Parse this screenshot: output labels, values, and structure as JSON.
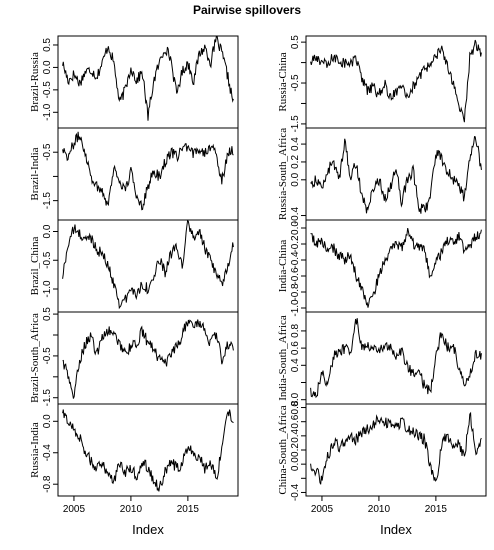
{
  "title": "Pairwise spillovers",
  "xlabel": "Index",
  "xticks": [
    2005,
    2010,
    2015
  ],
  "chart_data": [
    {
      "type": "line",
      "panel": "Brazil-Russia",
      "ylabel": "Brazil-Russia",
      "ylim": [
        -1.35,
        0.7
      ],
      "yticks": [
        -1.0,
        -0.5,
        0.0,
        0.5
      ],
      "ytick_labels": [
        "-1.0",
        "-0.5",
        "0.0",
        "0.5"
      ],
      "x": [
        2004.0,
        2004.5,
        2005.0,
        2005.5,
        2006.0,
        2006.5,
        2007.0,
        2007.5,
        2008.0,
        2008.5,
        2009.0,
        2009.5,
        2010.0,
        2010.5,
        2011.0,
        2011.5,
        2012.0,
        2012.5,
        2013.0,
        2013.5,
        2014.0,
        2014.5,
        2015.0,
        2015.5,
        2016.0,
        2016.5,
        2017.0,
        2017.5,
        2018.0,
        2018.5,
        2019.0
      ],
      "y": [
        0.1,
        -0.3,
        -0.15,
        -0.35,
        -0.1,
        -0.05,
        -0.2,
        0.1,
        0.5,
        0.1,
        -0.8,
        -0.5,
        0.0,
        -0.3,
        -0.1,
        -1.1,
        -0.3,
        0.1,
        0.45,
        0.2,
        -0.6,
        -0.1,
        0.1,
        -0.3,
        0.3,
        0.45,
        0.1,
        0.65,
        0.3,
        -0.2,
        -0.8
      ]
    },
    {
      "type": "line",
      "panel": "Brazil-India",
      "ylabel": "Brazil-India",
      "ylim": [
        -1.9,
        0.0
      ],
      "yticks": [
        -1.5,
        -1.0,
        -0.5
      ],
      "ytick_labels": [
        "-1.5",
        "",
        "-0.5"
      ],
      "x": [
        2004.0,
        2004.5,
        2005.0,
        2005.5,
        2006.0,
        2006.5,
        2007.0,
        2007.5,
        2008.0,
        2008.5,
        2009.0,
        2009.5,
        2010.0,
        2010.5,
        2011.0,
        2011.5,
        2012.0,
        2012.5,
        2013.0,
        2013.5,
        2014.0,
        2014.5,
        2015.0,
        2015.5,
        2016.0,
        2016.5,
        2017.0,
        2017.5,
        2018.0,
        2018.5,
        2019.0
      ],
      "y": [
        -0.4,
        -0.6,
        -0.3,
        -0.15,
        -0.5,
        -1.0,
        -1.2,
        -1.3,
        -1.6,
        -0.8,
        -1.1,
        -1.3,
        -0.9,
        -1.4,
        -1.6,
        -1.2,
        -0.9,
        -1.0,
        -0.7,
        -0.5,
        -0.6,
        -0.4,
        -0.45,
        -0.55,
        -0.4,
        -0.5,
        -0.35,
        -0.6,
        -1.1,
        -0.5,
        -0.45
      ]
    },
    {
      "type": "line",
      "panel": "Brazil_China",
      "ylabel": "Brazil_China",
      "ylim": [
        -1.4,
        0.2
      ],
      "yticks": [
        -1.0,
        -0.5,
        0.0
      ],
      "ytick_labels": [
        "-1.0",
        "-0.5",
        "0.0"
      ],
      "x": [
        2004.0,
        2004.5,
        2005.0,
        2005.5,
        2006.0,
        2006.5,
        2007.0,
        2007.5,
        2008.0,
        2008.5,
        2009.0,
        2009.5,
        2010.0,
        2010.5,
        2011.0,
        2011.5,
        2012.0,
        2012.5,
        2013.0,
        2013.5,
        2014.0,
        2014.5,
        2015.0,
        2015.5,
        2016.0,
        2016.5,
        2017.0,
        2017.5,
        2018.0,
        2018.5,
        2019.0
      ],
      "y": [
        -0.8,
        -0.2,
        0.05,
        -0.05,
        -0.15,
        -0.1,
        -0.3,
        -0.4,
        -0.6,
        -0.9,
        -1.25,
        -1.2,
        -1.0,
        -1.1,
        -0.9,
        -1.0,
        -0.8,
        -0.5,
        -0.7,
        -0.4,
        -0.3,
        -0.6,
        0.15,
        -0.1,
        0.0,
        -0.3,
        -0.5,
        -0.8,
        -0.9,
        -0.6,
        -0.2
      ]
    },
    {
      "type": "line",
      "panel": "Brazil-South_Africa",
      "ylabel": "Brazil-South_Africa",
      "ylim": [
        -1.65,
        0.55
      ],
      "yticks": [
        -1.5,
        -1.0,
        -0.5,
        0.0,
        0.5
      ],
      "ytick_labels": [
        "-1.5",
        "",
        "-0.5",
        "",
        "0.5"
      ],
      "x": [
        2004.0,
        2004.5,
        2005.0,
        2005.5,
        2006.0,
        2006.5,
        2007.0,
        2007.5,
        2008.0,
        2008.5,
        2009.0,
        2009.5,
        2010.0,
        2010.5,
        2011.0,
        2011.5,
        2012.0,
        2012.5,
        2013.0,
        2013.5,
        2014.0,
        2014.5,
        2015.0,
        2015.5,
        2016.0,
        2016.5,
        2017.0,
        2017.5,
        2018.0,
        2018.5,
        2019.0
      ],
      "y": [
        -0.6,
        -1.0,
        -1.5,
        -0.6,
        -0.2,
        0.0,
        -0.5,
        0.0,
        0.1,
        0.0,
        -0.2,
        -0.4,
        -0.3,
        -0.2,
        0.1,
        -0.2,
        -0.3,
        -0.6,
        -0.7,
        -0.5,
        -0.3,
        0.0,
        0.35,
        0.2,
        0.3,
        0.1,
        -0.2,
        0.0,
        -0.6,
        -0.2,
        -0.3
      ]
    },
    {
      "type": "line",
      "panel": "Russia-India",
      "ylabel": "Russia-India",
      "ylim": [
        -0.95,
        0.22
      ],
      "yticks": [
        -0.8,
        -0.4,
        0.0
      ],
      "ytick_labels": [
        "-0.8",
        "-0.4",
        "0.0"
      ],
      "x": [
        2004.0,
        2004.5,
        2005.0,
        2005.5,
        2006.0,
        2006.5,
        2007.0,
        2007.5,
        2008.0,
        2008.5,
        2009.0,
        2009.5,
        2010.0,
        2010.5,
        2011.0,
        2011.5,
        2012.0,
        2012.5,
        2013.0,
        2013.5,
        2014.0,
        2014.5,
        2015.0,
        2015.5,
        2016.0,
        2016.5,
        2017.0,
        2017.5,
        2018.0,
        2018.5,
        2019.0
      ],
      "y": [
        0.1,
        0.0,
        -0.1,
        -0.2,
        -0.4,
        -0.5,
        -0.6,
        -0.55,
        -0.65,
        -0.75,
        -0.55,
        -0.65,
        -0.6,
        -0.7,
        -0.5,
        -0.6,
        -0.75,
        -0.85,
        -0.65,
        -0.5,
        -0.6,
        -0.55,
        -0.3,
        -0.4,
        -0.45,
        -0.6,
        -0.5,
        -0.75,
        -0.3,
        0.15,
        0.0
      ]
    },
    {
      "type": "line",
      "panel": "Russia-China",
      "ylabel": "Russia-China",
      "ylim": [
        -1.6,
        0.65
      ],
      "yticks": [
        -1.5,
        -1.0,
        -0.5,
        0.0,
        0.5
      ],
      "ytick_labels": [
        "-1.5",
        "",
        "-0.5",
        "",
        "0.5"
      ],
      "x": [
        2004.0,
        2004.5,
        2005.0,
        2005.5,
        2006.0,
        2006.5,
        2007.0,
        2007.5,
        2008.0,
        2008.5,
        2009.0,
        2009.5,
        2010.0,
        2010.5,
        2011.0,
        2011.5,
        2012.0,
        2012.5,
        2013.0,
        2013.5,
        2014.0,
        2014.5,
        2015.0,
        2015.5,
        2016.0,
        2016.5,
        2017.0,
        2017.5,
        2018.0,
        2018.5,
        2019.0
      ],
      "y": [
        0.0,
        0.1,
        0.05,
        -0.1,
        0.15,
        0.05,
        0.0,
        -0.05,
        0.1,
        -0.4,
        -0.7,
        -0.6,
        -0.8,
        -0.5,
        -0.9,
        -0.7,
        -0.5,
        -0.8,
        -0.6,
        -0.4,
        -0.2,
        0.0,
        0.2,
        0.3,
        -0.1,
        -0.5,
        -1.0,
        -1.5,
        0.2,
        0.45,
        0.25
      ]
    },
    {
      "type": "line",
      "panel": "Russia-South_Africa",
      "ylabel": "Russia-South_Africa",
      "ylim": [
        -0.45,
        0.58
      ],
      "yticks": [
        -0.4,
        0.0,
        0.2,
        0.4
      ],
      "ytick_labels": [
        "-0.4",
        "0.0",
        "0.2",
        "0.4"
      ],
      "x": [
        2004.0,
        2004.5,
        2005.0,
        2005.5,
        2006.0,
        2006.5,
        2007.0,
        2007.5,
        2008.0,
        2008.5,
        2009.0,
        2009.5,
        2010.0,
        2010.5,
        2011.0,
        2011.5,
        2012.0,
        2012.5,
        2013.0,
        2013.5,
        2014.0,
        2014.5,
        2015.0,
        2015.5,
        2016.0,
        2016.5,
        2017.0,
        2017.5,
        2018.0,
        2018.5,
        2019.0
      ],
      "y": [
        -0.05,
        0.0,
        -0.1,
        0.1,
        0.2,
        0.0,
        0.45,
        0.0,
        0.2,
        -0.2,
        -0.35,
        -0.1,
        0.0,
        -0.2,
        -0.1,
        0.15,
        -0.25,
        0.0,
        0.1,
        -0.3,
        -0.35,
        -0.2,
        0.3,
        0.25,
        0.1,
        0.0,
        -0.05,
        -0.2,
        0.25,
        0.5,
        0.1
      ]
    },
    {
      "type": "line",
      "panel": "India-China",
      "ylabel": "India-China",
      "ylim": [
        -1.05,
        0.1
      ],
      "yticks": [
        -1.0,
        -0.8,
        -0.6,
        -0.4,
        -0.2,
        0.0
      ],
      "ytick_labels": [
        "-1.0",
        "-0.8",
        "-0.6",
        "-0.4",
        "-0.2",
        "0.0"
      ],
      "x": [
        2004.0,
        2004.5,
        2005.0,
        2005.5,
        2006.0,
        2006.5,
        2007.0,
        2007.5,
        2008.0,
        2008.5,
        2009.0,
        2009.5,
        2010.0,
        2010.5,
        2011.0,
        2011.5,
        2012.0,
        2012.5,
        2013.0,
        2013.5,
        2014.0,
        2014.5,
        2015.0,
        2015.5,
        2016.0,
        2016.5,
        2017.0,
        2017.5,
        2018.0,
        2018.5,
        2019.0
      ],
      "y": [
        -0.1,
        -0.2,
        -0.15,
        -0.3,
        -0.25,
        -0.35,
        -0.4,
        -0.35,
        -0.6,
        -0.75,
        -0.95,
        -0.85,
        -0.6,
        -0.4,
        -0.3,
        -0.2,
        -0.25,
        -0.05,
        -0.2,
        -0.25,
        -0.3,
        -0.6,
        -0.45,
        -0.3,
        -0.15,
        -0.2,
        -0.1,
        -0.3,
        -0.25,
        -0.1,
        -0.05
      ]
    },
    {
      "type": "line",
      "panel": "India-South_Africa",
      "ylabel": "India-South_Africa",
      "ylim": [
        -0.05,
        1.02
      ],
      "yticks": [
        0.0,
        0.2,
        0.4,
        0.6,
        0.8
      ],
      "ytick_labels": [
        "0.0",
        "",
        "0.4",
        "0.6",
        "0.8"
      ],
      "x": [
        2004.0,
        2004.5,
        2005.0,
        2005.5,
        2006.0,
        2006.5,
        2007.0,
        2007.5,
        2008.0,
        2008.5,
        2009.0,
        2009.5,
        2010.0,
        2010.5,
        2011.0,
        2011.5,
        2012.0,
        2012.5,
        2013.0,
        2013.5,
        2014.0,
        2014.5,
        2015.0,
        2015.5,
        2016.0,
        2016.5,
        2017.0,
        2017.5,
        2018.0,
        2018.5,
        2019.0
      ],
      "y": [
        0.1,
        0.05,
        0.3,
        0.2,
        0.5,
        0.55,
        0.6,
        0.55,
        0.95,
        0.6,
        0.65,
        0.6,
        0.55,
        0.65,
        0.6,
        0.5,
        0.55,
        0.4,
        0.3,
        0.35,
        0.15,
        0.1,
        0.5,
        0.8,
        0.6,
        0.65,
        0.4,
        0.15,
        0.3,
        0.55,
        0.5
      ]
    },
    {
      "type": "line",
      "panel": "China-South_Africa",
      "ylabel": "China-South_Africa",
      "ylim": [
        -0.45,
        0.85
      ],
      "yticks": [
        -0.4,
        -0.2,
        0.0,
        0.2,
        0.4,
        0.6,
        0.8
      ],
      "ytick_labels": [
        "-0.4",
        "",
        "0.0",
        "0.2",
        "0.4",
        "0.6",
        "0.8"
      ],
      "x": [
        2004.0,
        2004.5,
        2005.0,
        2005.5,
        2006.0,
        2006.5,
        2007.0,
        2007.5,
        2008.0,
        2008.5,
        2009.0,
        2009.5,
        2010.0,
        2010.5,
        2011.0,
        2011.5,
        2012.0,
        2012.5,
        2013.0,
        2013.5,
        2014.0,
        2014.5,
        2015.0,
        2015.5,
        2016.0,
        2016.5,
        2017.0,
        2017.5,
        2018.0,
        2018.5,
        2019.0
      ],
      "y": [
        -0.05,
        -0.1,
        -0.25,
        0.1,
        0.3,
        0.25,
        0.3,
        0.4,
        0.35,
        0.45,
        0.5,
        0.55,
        0.65,
        0.6,
        0.55,
        0.5,
        0.6,
        0.5,
        0.45,
        0.4,
        0.35,
        0.0,
        -0.3,
        0.3,
        0.4,
        0.2,
        0.3,
        0.1,
        0.7,
        0.2,
        0.3
      ]
    }
  ]
}
